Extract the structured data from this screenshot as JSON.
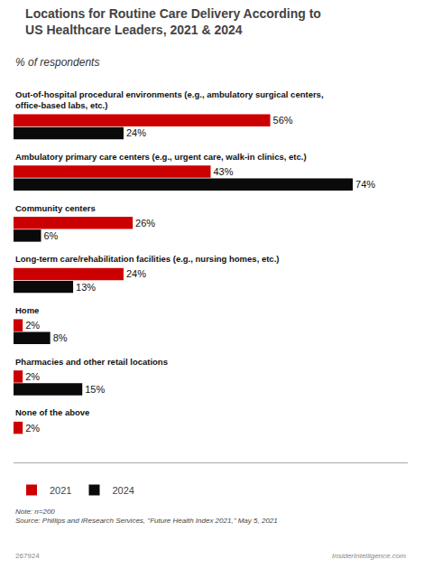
{
  "chart_data": {
    "type": "bar",
    "orientation": "horizontal",
    "title": "Locations for Routine Care Delivery According to\nUS Healthcare Leaders, 2021 & 2024",
    "subtitle": "% of respondents",
    "categories": [
      "Out-of-hospital procedural environments (e.g., ambulatory surgical centers,\noffice-based labs, etc.)",
      "Ambulatory primary care centers (e.g., urgent care, walk-in clinics, etc.)",
      "Community centers",
      "Long-term care/rehabilitation facilities (e.g., nursing homes, etc.)",
      "Home",
      "Pharmacies and other retail locations",
      "None of the above"
    ],
    "series": [
      {
        "name": "2021",
        "color": "#cc0000",
        "values": [
          56,
          43,
          26,
          24,
          2,
          2,
          2
        ],
        "value_labels": [
          "56%",
          "43%",
          "26%",
          "24%",
          "2%",
          "2%",
          "2%"
        ]
      },
      {
        "name": "2024",
        "color": "#0a0a0a",
        "values": [
          24,
          74,
          6,
          13,
          8,
          15,
          0
        ],
        "value_labels": [
          "24%",
          "74%",
          "6%",
          "13%",
          "8%",
          "15%",
          null
        ]
      }
    ],
    "xlim": [
      0,
      86
    ],
    "data_labels": true,
    "tick_labels": false,
    "grid": false,
    "legend": "bottom",
    "annotations": [
      "Note: n=200\nSource: Phillips and iResearch Services, \"Future Health Index 2021,\" May 5, 2021",
      "267924",
      "InsiderIntelligence.com"
    ]
  }
}
